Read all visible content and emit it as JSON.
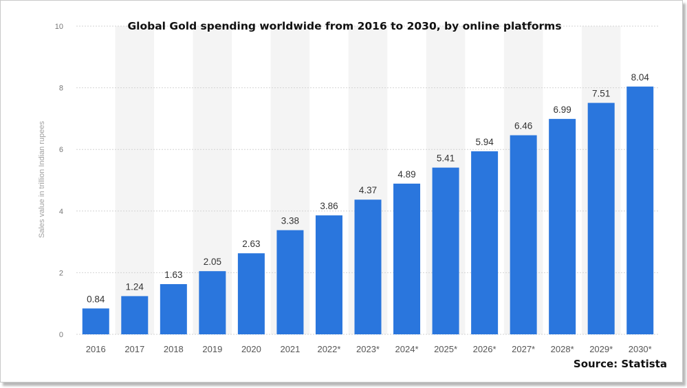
{
  "chart_data": {
    "type": "bar",
    "title": "Global Gold spending worldwide from 2016 to 2030, by online platforms",
    "xlabel": "",
    "ylabel": "Sales value in trillion Indian rupees",
    "ylim": [
      0,
      10
    ],
    "yticks": [
      0,
      2,
      4,
      6,
      8,
      10
    ],
    "grid": "horizontal dashed",
    "categories": [
      "2016",
      "2017",
      "2018",
      "2019",
      "2020",
      "2021",
      "2022*",
      "2023*",
      "2024*",
      "2025*",
      "2026*",
      "2027*",
      "2028*",
      "2029*",
      "2030*"
    ],
    "values": [
      0.84,
      1.24,
      1.63,
      2.05,
      2.63,
      3.38,
      3.86,
      4.37,
      4.89,
      5.41,
      5.94,
      6.46,
      6.99,
      7.51,
      8.04
    ],
    "value_labels": [
      "0.84",
      "1.24",
      "1.63",
      "2.05",
      "2.63",
      "3.38",
      "3.86",
      "4.37",
      "4.89",
      "5.41",
      "5.94",
      "6.46",
      "6.99",
      "7.51",
      "8.04"
    ],
    "bar_color": "#2a76dd",
    "alt_band_color": "#f4f4f4",
    "source": "Source: Statista"
  }
}
